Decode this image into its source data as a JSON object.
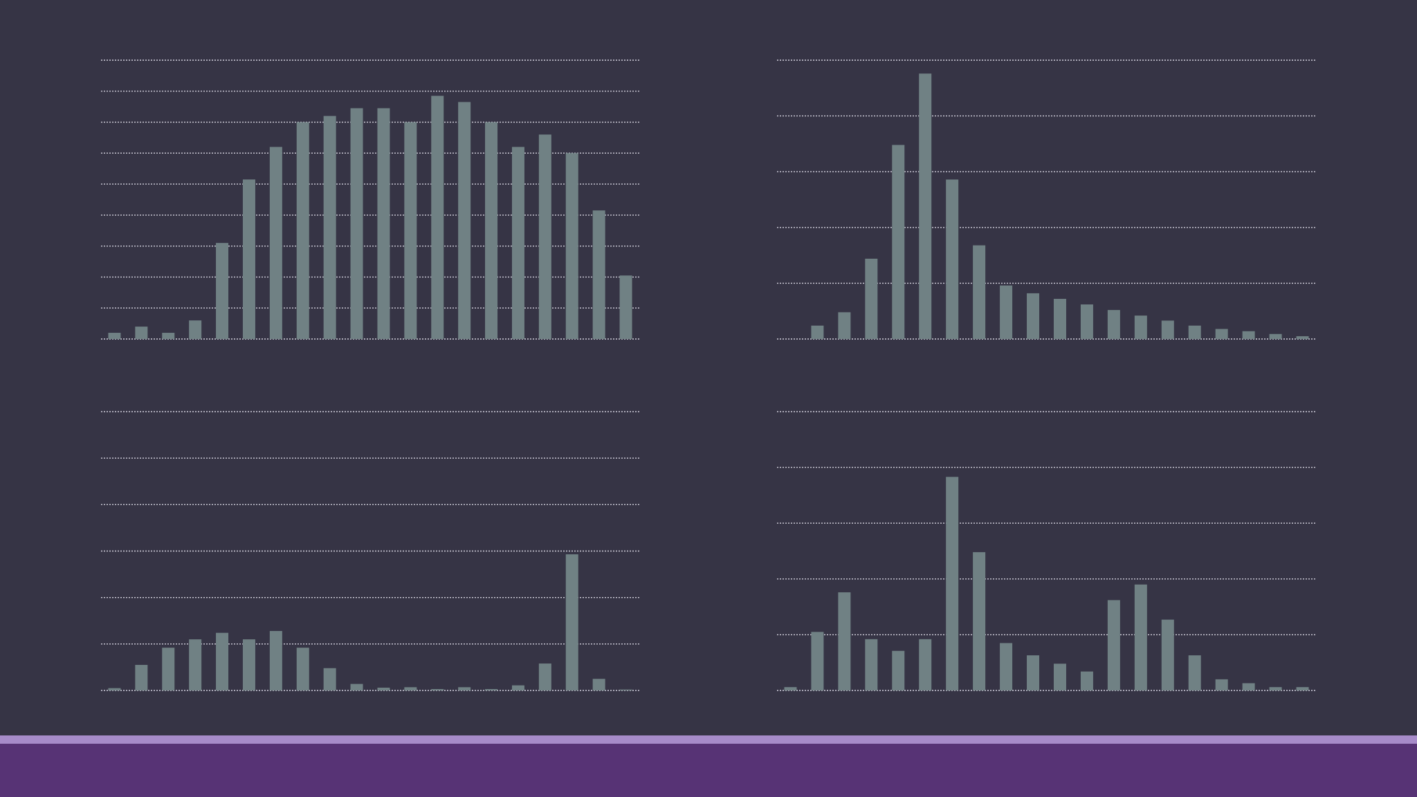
{
  "colors": {
    "background": "#363445",
    "bar": "#708184",
    "gridline": "#d4d2de",
    "footer_stripe": "#a78bc9",
    "footer_band": "#573375"
  },
  "chart_data": [
    {
      "type": "bar",
      "grid": true,
      "ylim": [
        0,
        9
      ],
      "gridline_count": 10,
      "values": [
        0.2,
        0.4,
        0.2,
        0.6,
        3.1,
        5.15,
        6.2,
        7.0,
        7.2,
        7.45,
        7.45,
        7.0,
        7.85,
        7.65,
        7.0,
        6.2,
        6.6,
        6.0,
        4.15,
        2.05
      ]
    },
    {
      "type": "bar",
      "grid": true,
      "ylim": [
        0,
        5
      ],
      "gridline_count": 6,
      "values": [
        0.0,
        0.24,
        0.48,
        1.44,
        3.48,
        4.76,
        2.86,
        1.68,
        0.96,
        0.82,
        0.72,
        0.62,
        0.52,
        0.42,
        0.33,
        0.24,
        0.18,
        0.14,
        0.09,
        0.05
      ]
    },
    {
      "type": "bar",
      "grid": true,
      "ylim": [
        0,
        6
      ],
      "gridline_count": 7,
      "values": [
        0.05,
        0.55,
        0.92,
        1.1,
        1.24,
        1.1,
        1.28,
        0.92,
        0.48,
        0.14,
        0.06,
        0.07,
        0.03,
        0.07,
        0.03,
        0.11,
        0.58,
        2.93,
        0.25,
        0.02
      ]
    },
    {
      "type": "bar",
      "grid": true,
      "ylim": [
        0,
        5
      ],
      "gridline_count": 6,
      "values": [
        0.06,
        1.05,
        1.76,
        0.92,
        0.71,
        0.92,
        3.83,
        2.48,
        0.85,
        0.63,
        0.48,
        0.34,
        1.62,
        1.9,
        1.27,
        0.63,
        0.2,
        0.13,
        0.06,
        0.06
      ]
    }
  ]
}
